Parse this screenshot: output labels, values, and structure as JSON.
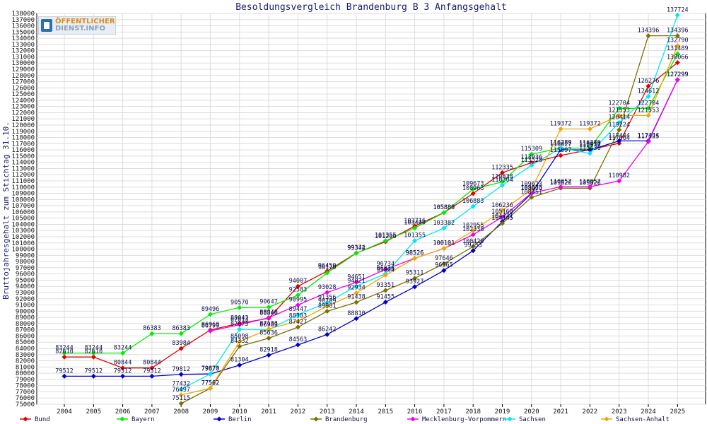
{
  "logo": {
    "line1": "ÖFFENTLICHER",
    "line2": "DIENST.INFO"
  },
  "chart_data": {
    "type": "line",
    "title": "Besoldungsvergleich Brandenburg B 3 Anfangsgehalt",
    "xlabel": "",
    "ylabel": "Bruttojahresgehalt zum Stichtag 31.10.",
    "ylim": [
      75000,
      138000
    ],
    "ytick_step": 1000,
    "grid": true,
    "legend_position": "bottom",
    "categories": [
      "2004",
      "2005",
      "2006",
      "2007",
      "2008",
      "2009",
      "2010",
      "2011",
      "2012",
      "2013",
      "2014",
      "2015",
      "2016",
      "2017",
      "2018",
      "2019",
      "2020",
      "2021",
      "2022",
      "2023",
      "2024",
      "2025"
    ],
    "series": [
      {
        "name": "Bund",
        "color": "#e00000",
        "values": [
          82610,
          82610,
          80844,
          80844,
          83984,
          86960,
          88042,
          88846,
          94007,
          96450,
          99374,
          101206,
          103716,
          105883,
          108963,
          112335,
          113936,
          115097,
          116050,
          117064,
          126276,
          130066
        ]
      },
      {
        "name": "Bayern",
        "color": "#00ee00",
        "values": [
          83244,
          83244,
          83244,
          86383,
          86383,
          89496,
          90570,
          90647,
          92583,
          96170,
          99342,
          101355,
          103400,
          105889,
          109673,
          110838,
          115309,
          116289,
          116279,
          122704,
          122704,
          131489
        ]
      },
      {
        "name": "Berlin",
        "color": "#0000c8",
        "values": [
          79512,
          79512,
          79512,
          79512,
          79812,
          79873,
          81304,
          82918,
          84563,
          86242,
          88810,
          91455,
          93927,
          96565,
          99753,
          104441,
          108974,
          116027,
          115977,
          117444,
          117444,
          127299
        ]
      },
      {
        "name": "Brandenburg",
        "color": "#7a7000",
        "values": [
          null,
          null,
          null,
          null,
          75115,
          77562,
          84332,
          85636,
          87427,
          89981,
          91438,
          93351,
          95311,
          97646,
          100420,
          104145,
          108351,
          109826,
          109826,
          119224,
          134396,
          134396
        ]
      },
      {
        "name": "Mecklenburg-Vorpommern",
        "color": "#f000f0",
        "values": [
          null,
          null,
          null,
          null,
          null,
          86799,
          87813,
          88949,
          90995,
          93028,
          94651,
          96734,
          98526,
          100101,
          102338,
          105168,
          109035,
          110057,
          110057,
          110982,
          117325,
          127299
        ]
      },
      {
        "name": "Sachsen",
        "color": "#00e8f0",
        "values": [
          null,
          null,
          null,
          null,
          77432,
          79870,
          87073,
          86989,
          89447,
          91356,
          94021,
          96036,
          101355,
          103382,
          106883,
          110304,
          113528,
          116289,
          115436,
          120414,
          124612,
          137724
        ]
      },
      {
        "name": "Sachsen-Anhalt",
        "color": "#f0a800",
        "values": [
          null,
          null,
          null,
          null,
          76497,
          77562,
          85098,
          87133,
          88383,
          90789,
          92934,
          95804,
          98526,
          100101,
          102955,
          106236,
          109623,
          119372,
          119372,
          121553,
          121553,
          132790
        ]
      }
    ]
  }
}
